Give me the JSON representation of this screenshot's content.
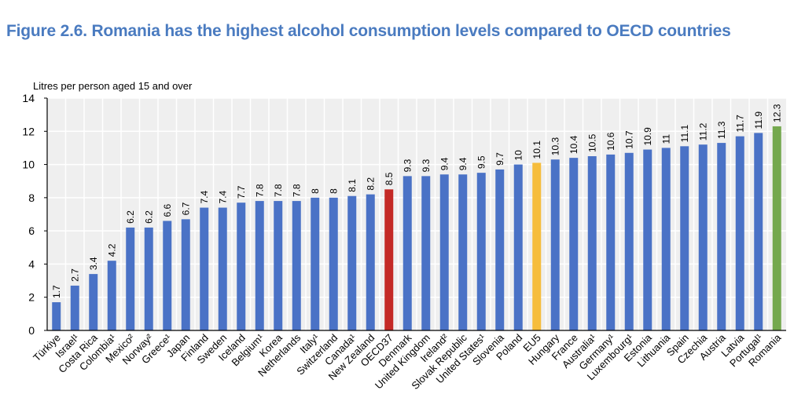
{
  "chart_data": {
    "type": "bar",
    "title": "Figure 2.6. Romania has the highest alcohol consumption levels compared to OECD countries",
    "ylabel": "Litres per person aged 15 and over",
    "xlabel": "",
    "ylim": [
      0,
      14
    ],
    "yticks": [
      0,
      2,
      4,
      6,
      8,
      10,
      12,
      14
    ],
    "grid": true,
    "categories": [
      "Türkiye",
      "Israel¹",
      "Costa Rica",
      "Colombia¹",
      "Mexico²",
      "Norway²",
      "Greece¹",
      "Japan",
      "Finland",
      "Sweden",
      "Iceland",
      "Belgium¹",
      "Korea",
      "Netherlands",
      "Italy¹",
      "Switzerland",
      "Canada¹",
      "New Zealand",
      "OECD37",
      "Denmark",
      "United Kingdom",
      "Ireland²",
      "Slovak Republic",
      "United States¹",
      "Slovenia",
      "Poland",
      "EU5",
      "Hungary",
      "France",
      "Australia¹",
      "Germany¹",
      "Luxembourg¹",
      "Estonia",
      "Lithuania",
      "Spain",
      "Czechia",
      "Austria",
      "Latvia",
      "Portugal¹",
      "Romania"
    ],
    "values": [
      1.7,
      2.7,
      3.4,
      4.2,
      6.2,
      6.2,
      6.6,
      6.7,
      7.4,
      7.4,
      7.7,
      7.8,
      7.8,
      7.8,
      8,
      8,
      8.1,
      8.2,
      8.5,
      9.3,
      9.3,
      9.4,
      9.4,
      9.5,
      9.7,
      10,
      10.1,
      10.3,
      10.4,
      10.5,
      10.6,
      10.7,
      10.9,
      11,
      11.1,
      11.2,
      11.3,
      11.7,
      11.9,
      12.3
    ],
    "colors": {
      "default": "#4a72c6",
      "OECD37": "#c42a26",
      "EU5": "#f6bd3c",
      "Romania": "#74a84e"
    },
    "plot_background": "#efefef",
    "title_color": "#4a7bc0"
  }
}
